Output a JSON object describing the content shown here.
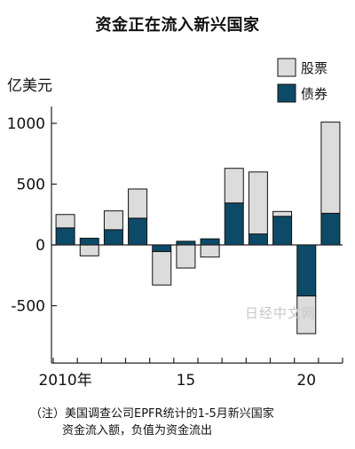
{
  "title": "资金正在流入新兴国家",
  "unit_label": "亿美元",
  "watermark": "日经中文网",
  "note": {
    "line1": "（注）美国调查公司EPFR统计的1-5月新兴国家",
    "line2": "资金流入额，负值为资金流出"
  },
  "colors": {
    "stocks": "#dcdcdc",
    "bonds": "#0d4a68",
    "axis": "#222222"
  },
  "chart_data": {
    "type": "bar",
    "stacked": true,
    "categories": [
      "2010",
      "2011",
      "2012",
      "2013",
      "2014",
      "2015",
      "2016",
      "2017",
      "2018",
      "2019",
      "2020",
      "2021"
    ],
    "x_tick_labels": [
      {
        "category": "2010",
        "label": "2010年"
      },
      {
        "category": "2015",
        "label": "15"
      },
      {
        "category": "2020",
        "label": "20"
      }
    ],
    "y_ticks": [
      1000,
      500,
      0,
      -500
    ],
    "y_tick_labels": [
      "1000",
      "500",
      "0",
      "-500"
    ],
    "ylim": [
      -950,
      1150
    ],
    "legend": {
      "position": "top-right",
      "entries": [
        "股票",
        "债券"
      ]
    },
    "series": [
      {
        "name": "债券",
        "values": [
          140,
          55,
          125,
          220,
          -55,
          30,
          50,
          345,
          90,
          235,
          -420,
          260
        ]
      },
      {
        "name": "股票",
        "values": [
          110,
          -90,
          155,
          240,
          -275,
          -190,
          -100,
          285,
          510,
          40,
          -310,
          750
        ]
      }
    ]
  }
}
